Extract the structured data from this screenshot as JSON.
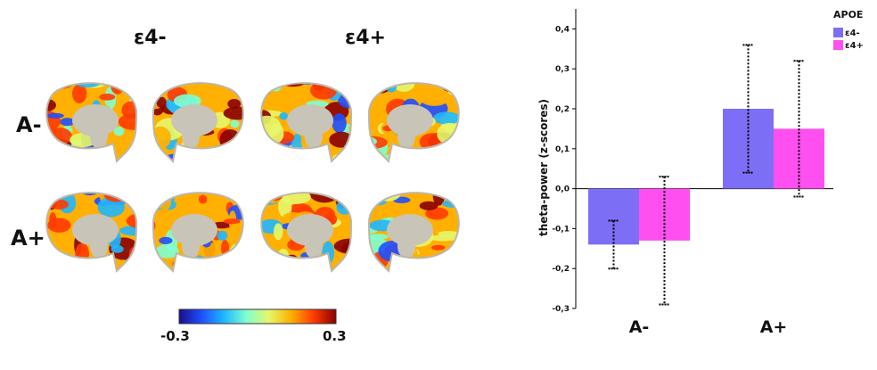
{
  "panel_left": {
    "column_labels": [
      "ε4-",
      "ε4+"
    ],
    "row_labels": [
      "A-",
      "A+"
    ],
    "colorbar": {
      "min_label": "-0.3",
      "max_label": "0.3",
      "colors": [
        "#1a0d8a",
        "#1f4fff",
        "#1fb7ff",
        "#7fffd0",
        "#e6f76a",
        "#ffb000",
        "#ff3a00",
        "#8a0000"
      ]
    }
  },
  "chart_data": {
    "type": "bar",
    "categories": [
      "A-",
      "A+"
    ],
    "series": [
      {
        "name": "ε4-",
        "color": "#7d6ff5",
        "values": [
          -0.14,
          0.2
        ],
        "err_low": [
          -0.2,
          0.04
        ],
        "err_high": [
          -0.08,
          0.36
        ]
      },
      {
        "name": "ε4+",
        "color": "#ff4ff0",
        "values": [
          -0.13,
          0.15
        ],
        "err_low": [
          -0.29,
          -0.02
        ],
        "err_high": [
          0.03,
          0.32
        ]
      }
    ],
    "title": "",
    "xlabel": "",
    "ylabel": "theta-power (z-scores)",
    "ylim": [
      -0.3,
      0.45
    ],
    "yticks": [
      -0.3,
      -0.2,
      -0.1,
      0.0,
      0.1,
      0.2,
      0.3,
      0.4
    ],
    "ytick_labels": [
      "-0,3",
      "-0,2",
      "-0,1",
      "0,0",
      "0,1",
      "0,2",
      "0,3",
      "0,4"
    ],
    "legend_title": "APOE",
    "legend_position": "top-right",
    "grid": false
  }
}
